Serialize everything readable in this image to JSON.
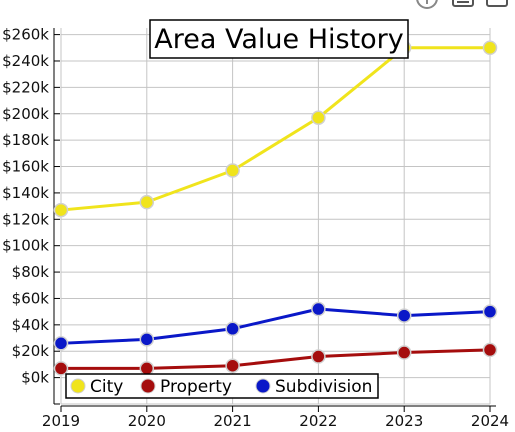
{
  "window_controls": [
    {
      "name": "info-icon"
    },
    {
      "name": "minimize-icon"
    },
    {
      "name": "maximize-icon"
    }
  ],
  "chart_data": {
    "type": "line",
    "title": "Area Value History",
    "xlabel": "",
    "ylabel": "",
    "x": [
      2019,
      2020,
      2021,
      2022,
      2023,
      2024
    ],
    "xlim": [
      2019,
      2024
    ],
    "ylim": [
      -20000,
      265000
    ],
    "y_ticks": [
      0,
      20000,
      40000,
      60000,
      80000,
      100000,
      120000,
      140000,
      160000,
      180000,
      200000,
      220000,
      240000,
      260000
    ],
    "y_tick_labels": [
      "$0k",
      "$20k",
      "$40k",
      "$60k",
      "$80k",
      "$100k",
      "$120k",
      "$140k",
      "$160k",
      "$180k",
      "$200k",
      "$220k",
      "$240k",
      "$260k"
    ],
    "x_tick_labels": [
      "2019",
      "2020",
      "2021",
      "2022",
      "2023",
      "2024"
    ],
    "grid": true,
    "legend_position": "bottom-left",
    "series": [
      {
        "name": "City",
        "color": "#f0e41c",
        "values": [
          127000,
          133000,
          157000,
          197000,
          250000,
          250000
        ]
      },
      {
        "name": "Property",
        "color": "#a50d0d",
        "values": [
          7000,
          7000,
          9000,
          16000,
          19000,
          21000
        ]
      },
      {
        "name": "Subdivision",
        "color": "#0a18c8",
        "values": [
          26000,
          29000,
          37000,
          52000,
          47000,
          50000
        ]
      }
    ]
  }
}
